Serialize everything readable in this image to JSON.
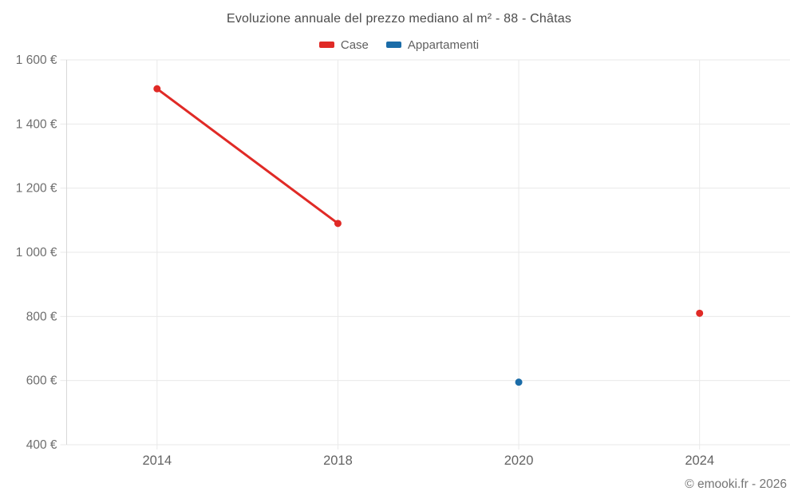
{
  "chart_data": {
    "type": "line",
    "title": "Evoluzione annuale del prezzo mediano al m² - 88 - Châtas",
    "categories": [
      "2014",
      "2018",
      "2020",
      "2024"
    ],
    "series": [
      {
        "name": "Case",
        "color": "#e02a26",
        "values": [
          1510,
          1090,
          null,
          810
        ]
      },
      {
        "name": "Appartamenti",
        "color": "#1b6ca8",
        "values": [
          null,
          null,
          595,
          null
        ]
      }
    ],
    "xlabel": "",
    "ylabel": "",
    "ylim": [
      400,
      1600
    ],
    "yticks": [
      {
        "value": 1600,
        "label": "1 600 €"
      },
      {
        "value": 1400,
        "label": "1 400 €"
      },
      {
        "value": 1200,
        "label": "1 200 €"
      },
      {
        "value": 1000,
        "label": "1 000 €"
      },
      {
        "value": 800,
        "label": "800 €"
      },
      {
        "value": 600,
        "label": "600 €"
      },
      {
        "value": 400,
        "label": "400 €"
      }
    ],
    "grid": true,
    "legend_position": "top"
  },
  "footer": {
    "credit": "© emooki.fr - 2026"
  },
  "colors": {
    "grid": "#e9e9e9",
    "axis": "#d8d8d8",
    "ytick_text": "#6e6e6e",
    "xtick_text": "#636363",
    "title_text": "#4c4c4c",
    "legend_text": "#5f5f5f",
    "footer_text": "#757575"
  }
}
